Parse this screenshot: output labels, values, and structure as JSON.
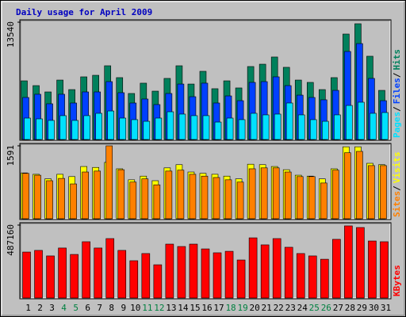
{
  "chart_data": [
    {
      "type": "bar",
      "title": "Daily usage for April 2009",
      "legend_separator": "/",
      "ylim": [
        0,
        13540
      ],
      "yticks": [
        13540
      ],
      "series": [
        {
          "name": "Hits",
          "color": "#00805c",
          "values": [
            6770,
            6220,
            5490,
            6860,
            5760,
            7230,
            7410,
            8510,
            7140,
            5310,
            6500,
            5580,
            7050,
            8510,
            6400,
            7870,
            5860,
            6770,
            5950,
            8420,
            8690,
            9520,
            8330,
            6860,
            6590,
            5760,
            7140,
            12170,
            13360,
            9610,
            5670
          ]
        },
        {
          "name": "Files",
          "color": "#0040ff",
          "values": [
            4850,
            5220,
            4120,
            5220,
            4210,
            5490,
            5490,
            6680,
            5400,
            4210,
            4670,
            4030,
            5310,
            6400,
            4940,
            6500,
            4210,
            5030,
            4480,
            6590,
            6680,
            7230,
            6220,
            5120,
            4850,
            4580,
            5670,
            10160,
            11070,
            7050,
            4480
          ]
        },
        {
          "name": "Pages",
          "color": "#00e0ff",
          "values": [
            2470,
            2380,
            2200,
            2750,
            2200,
            2750,
            3020,
            3290,
            2470,
            2290,
            2100,
            2470,
            3200,
            2930,
            2750,
            2750,
            2010,
            2470,
            2290,
            3020,
            2840,
            2930,
            4210,
            2840,
            2290,
            2100,
            2840,
            3930,
            4300,
            3020,
            3110
          ]
        }
      ]
    },
    {
      "type": "bar",
      "legend_separator": "/",
      "ylim": [
        0,
        1591
      ],
      "yticks": [
        1591
      ],
      "series": [
        {
          "name": "Visits",
          "color": "#ffff00",
          "values": [
            1000,
            970,
            870,
            970,
            920,
            1140,
            1120,
            1230,
            1090,
            850,
            930,
            830,
            1110,
            1180,
            1020,
            990,
            970,
            930,
            870,
            1190,
            1180,
            1140,
            1070,
            950,
            930,
            870,
            1090,
            1570,
            1570,
            1210,
            1180
          ]
        },
        {
          "name": "Sites",
          "color": "#ff8000",
          "values": [
            990,
            950,
            830,
            880,
            760,
            1020,
            1040,
            1591,
            1070,
            800,
            870,
            740,
            1040,
            1060,
            970,
            930,
            900,
            850,
            800,
            1090,
            1110,
            1110,
            1020,
            920,
            920,
            780,
            1060,
            1440,
            1470,
            1160,
            1160
          ]
        }
      ]
    },
    {
      "type": "bar",
      "ylim": [
        0,
        487160
      ],
      "yticks": [
        487160
      ],
      "categories": [
        "1",
        "2",
        "3",
        "4",
        "5",
        "6",
        "7",
        "8",
        "9",
        "10",
        "11",
        "12",
        "13",
        "14",
        "15",
        "16",
        "17",
        "18",
        "19",
        "20",
        "21",
        "22",
        "23",
        "24",
        "25",
        "26",
        "27",
        "28",
        "29",
        "30",
        "31"
      ],
      "category_colors": [
        "#000",
        "#000",
        "#000",
        "#008040",
        "#008040",
        "#000",
        "#000",
        "#000",
        "#000",
        "#000",
        "#008040",
        "#008040",
        "#000",
        "#000",
        "#000",
        "#000",
        "#000",
        "#008040",
        "#008040",
        "#000",
        "#000",
        "#000",
        "#000",
        "#000",
        "#008040",
        "#008040",
        "#000",
        "#000",
        "#000",
        "#000",
        "#000"
      ],
      "series": [
        {
          "name": "KBytes",
          "color": "#ff0000",
          "values": [
            307000,
            318000,
            281000,
            334000,
            291000,
            376000,
            334000,
            397000,
            318000,
            249000,
            297000,
            222000,
            360000,
            344000,
            360000,
            328000,
            302000,
            312000,
            254000,
            402000,
            355000,
            397000,
            339000,
            297000,
            281000,
            259000,
            392000,
            482000,
            471000,
            381000,
            376000
          ]
        }
      ]
    }
  ]
}
